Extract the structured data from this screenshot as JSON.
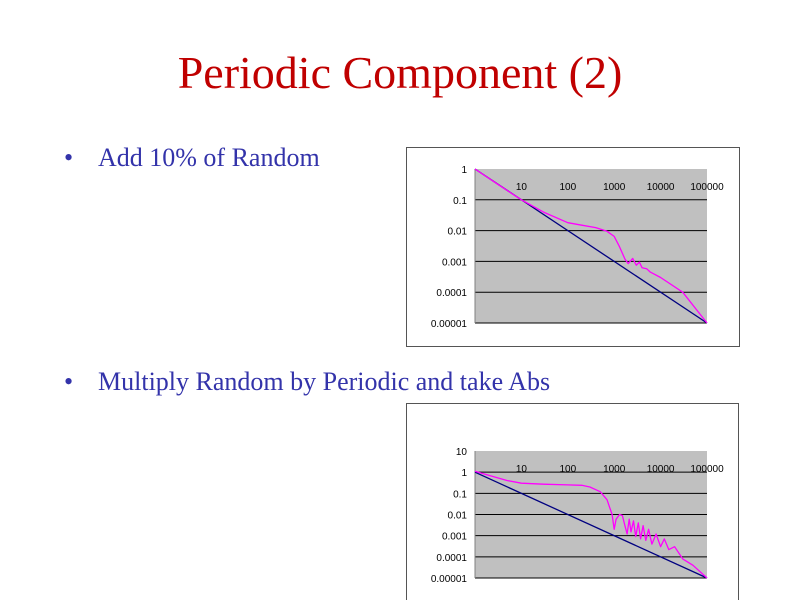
{
  "slide": {
    "title": "Periodic Component (2)",
    "bullets": [
      "Add 10% of Random",
      "Multiply Random by Periodic and take Abs"
    ],
    "bullet_symbol": "•"
  },
  "colors": {
    "title": "#c00000",
    "bullet_text": "#3333aa",
    "plot_background": "#c0c0c0",
    "gridline": "#000000",
    "series_periodic": "#ff00ff",
    "series_reference": "#000080"
  },
  "chart_data": [
    {
      "type": "line",
      "xscale": "log",
      "yscale": "log",
      "xlim": [
        1,
        100000
      ],
      "ylim": [
        1e-05,
        1
      ],
      "grid": true,
      "legend": "none",
      "x_tick_labels": [
        "10",
        "100",
        "1000",
        "10000",
        "100000"
      ],
      "y_tick_labels": [
        "1",
        "0.1",
        "0.01",
        "0.001",
        "0.0001",
        "0.00001"
      ],
      "series": [
        {
          "color": "#ff00ff",
          "x": [
            1,
            3,
            10,
            30,
            100,
            200,
            400,
            700,
            1000,
            1300,
            1700,
            2000,
            2500,
            3000,
            3500,
            4000,
            5000,
            6000,
            10000,
            30000,
            100000
          ],
          "y": [
            1,
            0.33,
            0.1,
            0.04,
            0.018,
            0.015,
            0.0125,
            0.0095,
            0.0065,
            0.003,
            0.0012,
            0.00085,
            0.00125,
            0.00075,
            0.00095,
            0.00062,
            0.00058,
            0.00045,
            0.0003,
            0.0001,
            1e-05
          ]
        },
        {
          "color": "#000080",
          "x": [
            1,
            100000
          ],
          "y": [
            1,
            1e-05
          ]
        }
      ]
    },
    {
      "type": "line",
      "xscale": "log",
      "yscale": "log",
      "xlim": [
        1,
        100000
      ],
      "ylim": [
        1e-05,
        10
      ],
      "grid": true,
      "legend": "none",
      "x_tick_labels": [
        "10",
        "100",
        "1000",
        "10000",
        "100000"
      ],
      "y_tick_labels": [
        "10",
        "1",
        "0.1",
        "0.01",
        "0.001",
        "0.0001",
        "0.00001"
      ],
      "series": [
        {
          "color": "#ff00ff",
          "x": [
            1,
            2,
            5,
            10,
            30,
            100,
            200,
            300,
            500,
            700,
            900,
            1000,
            1100,
            1300,
            1500,
            1700,
            1900,
            2100,
            2300,
            2600,
            2900,
            3300,
            3700,
            4200,
            4800,
            5500,
            6500,
            8000,
            10000,
            12000,
            15000,
            20000,
            30000,
            50000,
            100000
          ],
          "y": [
            1.1,
            0.7,
            0.4,
            0.3,
            0.27,
            0.25,
            0.24,
            0.2,
            0.12,
            0.05,
            0.01,
            0.002,
            0.006,
            0.01,
            0.009,
            0.003,
            0.0012,
            0.006,
            0.0015,
            0.005,
            0.0009,
            0.004,
            0.0007,
            0.003,
            0.0006,
            0.002,
            0.0004,
            0.0012,
            0.0003,
            0.0007,
            0.00022,
            0.0003,
            8e-05,
            4e-05,
            1e-05
          ]
        },
        {
          "color": "#000080",
          "x": [
            1,
            100000
          ],
          "y": [
            1,
            1e-05
          ]
        }
      ]
    }
  ]
}
